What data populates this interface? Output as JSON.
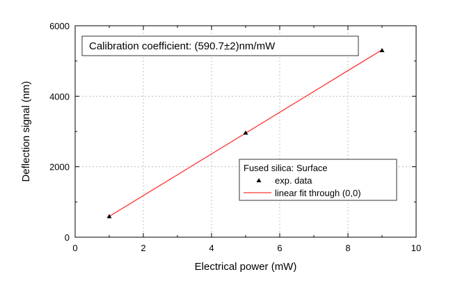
{
  "chart_data": {
    "type": "scatter",
    "title": "",
    "xlabel": "Electrical power (mW)",
    "ylabel": "Deflection signal (nm)",
    "xlim": [
      0,
      10
    ],
    "ylim": [
      0,
      6000
    ],
    "xticks": [
      0,
      2,
      4,
      6,
      8,
      10
    ],
    "yticks": [
      0,
      2000,
      4000,
      6000
    ],
    "grid": true,
    "annotation": "Calibration coefficient: (590.7±2)nm/mW",
    "legend_title": "Fused silica: Surface",
    "legend_position": "lower-right",
    "series": [
      {
        "name": "exp. data",
        "kind": "scatter",
        "marker": "triangle",
        "color": "#000000",
        "x": [
          1,
          5,
          9
        ],
        "y": [
          590,
          2960,
          5300
        ]
      },
      {
        "name": "linear fit through (0,0)",
        "kind": "line",
        "color": "#ff3333",
        "x": [
          1,
          9
        ],
        "y": [
          590.7,
          5316.3
        ]
      }
    ]
  }
}
